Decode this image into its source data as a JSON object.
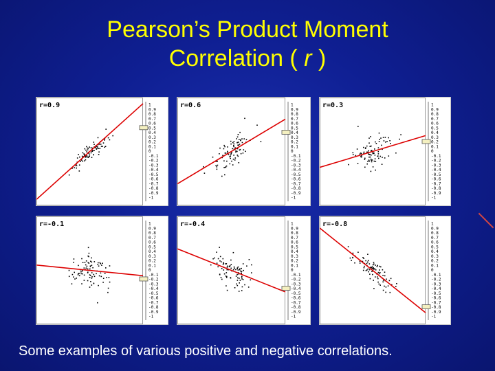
{
  "slide": {
    "title_main": "Pearson’s Product Moment",
    "title_line2_prefix": "Correlation ( ",
    "title_line2_var": "r",
    "title_line2_suffix": " )",
    "caption": "Some examples of various positive and negative correlations."
  },
  "colors": {
    "background": "#0f1f93",
    "title": "#ffff00",
    "caption": "#ffffff",
    "regression_line": "#dd0000",
    "points": "#000000"
  },
  "chart_data": [
    {
      "type": "scatter",
      "label": "r=0.9",
      "r": 0.9,
      "ticks": [
        "1",
        "0.9",
        "0.8",
        "0.7",
        "0.6",
        "0.5",
        "0.4",
        "0.3",
        "0.2",
        "0.1",
        "0",
        "-0.1",
        "-0.2",
        "-0.3",
        "-0.4",
        "-0.5",
        "-0.6",
        "-0.7",
        "-0.8",
        "-0.9",
        "-1"
      ],
      "slider_value": 0.5
    },
    {
      "type": "scatter",
      "label": "r=0.6",
      "r": 0.6,
      "ticks": [
        "1",
        "0.9",
        "0.8",
        "0.7",
        "0.6",
        "0.5",
        "0.4",
        "0.3",
        "0.2",
        "0.1",
        "0",
        "-0.1",
        "-0.2",
        "-0.3",
        "-0.4",
        "-0.5",
        "-0.6",
        "-0.7",
        "-0.8",
        "-0.9",
        "-1"
      ],
      "slider_value": 0.4
    },
    {
      "type": "scatter",
      "label": "r=0.3",
      "r": 0.3,
      "ticks": [
        "1",
        "0.9",
        "0.8",
        "0.7",
        "0.6",
        "0.5",
        "0.4",
        "0.3",
        "0.2",
        "0.1",
        "0",
        "-0.1",
        "-0.2",
        "-0.3",
        "-0.4",
        "-0.5",
        "-0.6",
        "-0.7",
        "-0.8",
        "-0.9",
        "-1"
      ],
      "slider_value": 0.2
    },
    {
      "type": "scatter",
      "label": "r=-0.1",
      "r": -0.1,
      "ticks": [
        "1",
        "0.9",
        "0.8",
        "0.7",
        "0.6",
        "0.5",
        "0.4",
        "0.3",
        "0.2",
        "0.1",
        "0",
        "-0.1",
        "-0.2",
        "-0.3",
        "-0.4",
        "-0.5",
        "-0.6",
        "-0.7",
        "-0.8",
        "-0.9",
        "-1"
      ],
      "slider_value": -0.2
    },
    {
      "type": "scatter",
      "label": "r=-0.4",
      "r": -0.4,
      "ticks": [
        "1",
        "0.9",
        "0.8",
        "0.7",
        "0.6",
        "0.5",
        "0.4",
        "0.3",
        "0.2",
        "0.1",
        "0",
        "-0.1",
        "-0.2",
        "-0.3",
        "-0.4",
        "-0.5",
        "-0.6",
        "-0.7",
        "-0.8",
        "-0.9",
        "-1"
      ],
      "slider_value": -0.4
    },
    {
      "type": "scatter",
      "label": "r=-0.8",
      "r": -0.8,
      "ticks": [
        "1",
        "0.9",
        "0.8",
        "0.7",
        "0.6",
        "0.5",
        "0.4",
        "0.3",
        "0.2",
        "0.1",
        "0",
        "-0.1",
        "-0.2",
        "-0.3",
        "-0.4",
        "-0.5",
        "-0.6",
        "-0.7",
        "-0.8",
        "-0.9",
        "-1"
      ],
      "slider_value": -0.8
    }
  ]
}
